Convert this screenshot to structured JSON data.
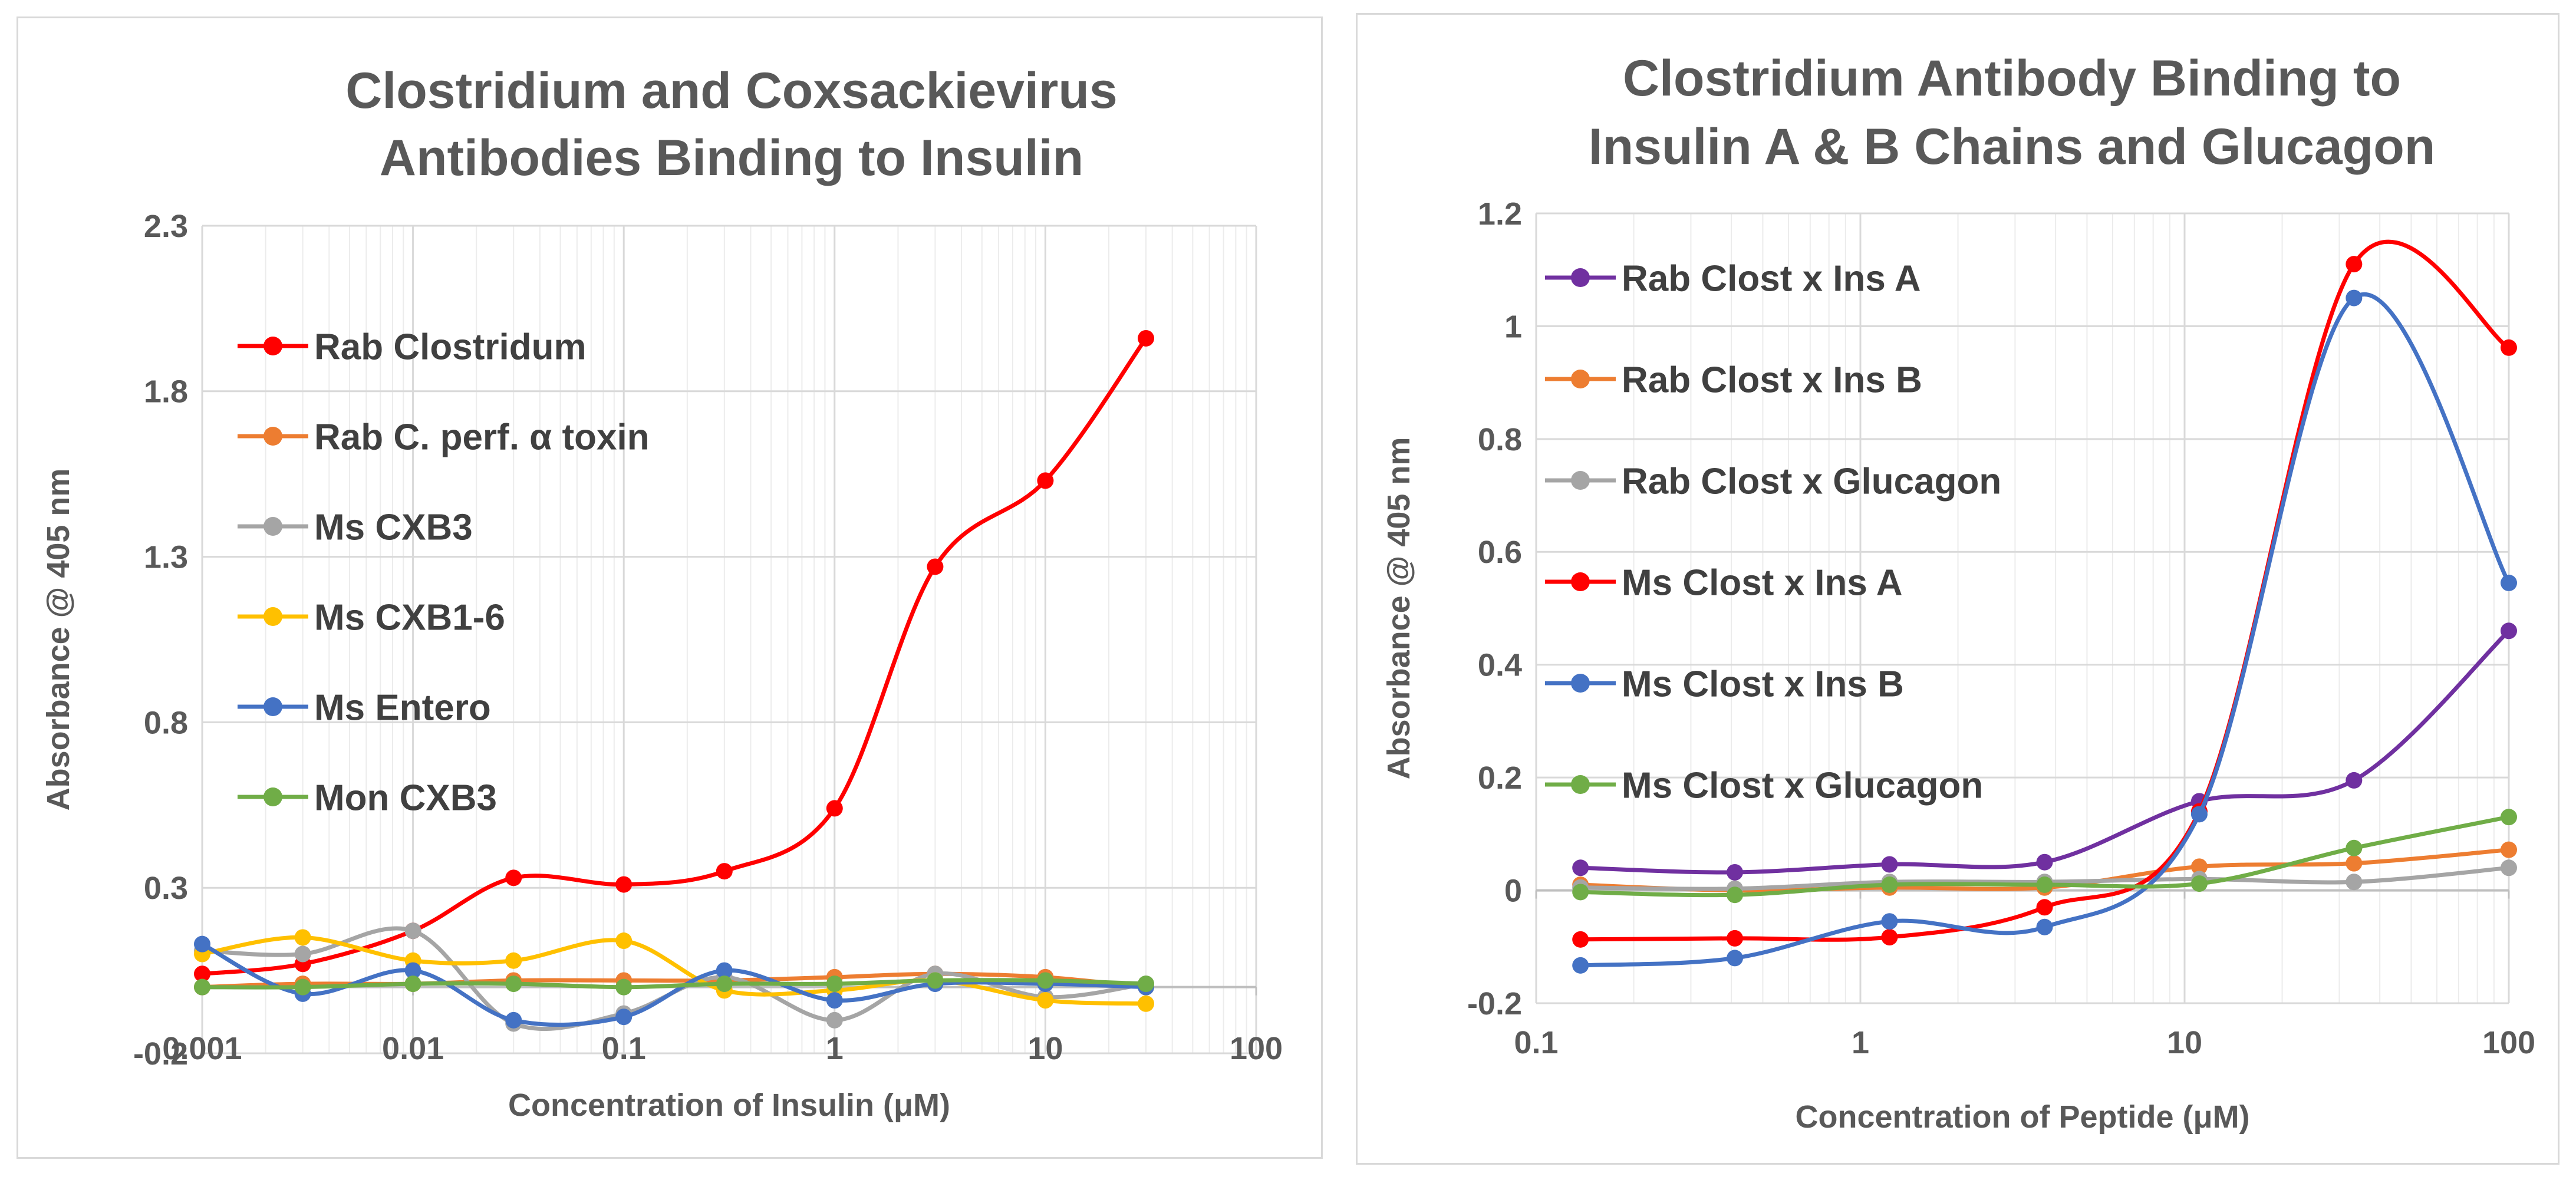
{
  "chart_data": [
    {
      "type": "line",
      "x_scale": "log",
      "title_lines": [
        "Clostridium and Coxsackievirus",
        "Antibodies Binding to Insulin"
      ],
      "xlabel": "Concentration of Insulin (μM)",
      "ylabel": "Absorbance @ 405 nm",
      "xlim": [
        0.001,
        100
      ],
      "ylim": [
        -0.2,
        2.3
      ],
      "x_ticks": [
        0.001,
        0.01,
        0.1,
        1,
        10,
        100
      ],
      "x_tick_labels": [
        "0.001",
        "0.01",
        "0.1",
        "1",
        "10",
        "100"
      ],
      "y_ticks": [
        -0.2,
        0.3,
        0.8,
        1.3,
        1.8,
        2.3
      ],
      "y_tick_labels": [
        "-0.2",
        "0.3",
        "0.8",
        "1.3",
        "1.8",
        "2.3"
      ],
      "grid": true,
      "legend_position": "upper-left",
      "x": [
        0.001,
        0.003,
        0.01,
        0.03,
        0.1,
        0.3,
        1,
        3,
        10,
        30
      ],
      "series": [
        {
          "name": "Rab Clostridum",
          "color": "#ff0000",
          "values": [
            0.04,
            0.07,
            0.17,
            0.33,
            0.31,
            0.35,
            0.54,
            1.27,
            1.53,
            1.96
          ]
        },
        {
          "name": "Rab C. perf. α toxin",
          "color": "#ed7d31",
          "values": [
            0.0,
            0.01,
            0.01,
            0.02,
            0.02,
            0.02,
            0.03,
            0.04,
            0.03,
            0.0
          ]
        },
        {
          "name": "Ms CXB3",
          "color": "#a5a5a5",
          "values": [
            0.11,
            0.1,
            0.17,
            -0.11,
            -0.08,
            0.03,
            -0.1,
            0.04,
            -0.03,
            0.01
          ]
        },
        {
          "name": "Ms CXB1-6",
          "color": "#ffc000",
          "values": [
            0.1,
            0.15,
            0.08,
            0.08,
            0.14,
            -0.01,
            -0.01,
            0.02,
            -0.04,
            -0.05
          ]
        },
        {
          "name": "Ms Entero",
          "color": "#4472c4",
          "values": [
            0.13,
            -0.02,
            0.05,
            -0.1,
            -0.09,
            0.05,
            -0.04,
            0.01,
            0.01,
            0.0
          ]
        },
        {
          "name": "Mon CXB3",
          "color": "#70ad47",
          "values": [
            0.0,
            0.0,
            0.01,
            0.01,
            0.0,
            0.01,
            0.01,
            0.02,
            0.02,
            0.01
          ]
        }
      ]
    },
    {
      "type": "line",
      "x_scale": "log",
      "title_lines": [
        "Clostridium Antibody Binding to",
        "Insulin A & B Chains and Glucagon"
      ],
      "xlabel": "Concentration of Peptide (μM)",
      "ylabel": "Absorbance @ 405 nm",
      "xlim": [
        0.1,
        100
      ],
      "ylim": [
        -0.2,
        1.2
      ],
      "x_ticks": [
        0.1,
        1,
        10,
        100
      ],
      "x_tick_labels": [
        "0.1",
        "1",
        "10",
        "100"
      ],
      "y_ticks": [
        -0.2,
        0,
        0.2,
        0.4,
        0.6,
        0.8,
        1,
        1.2
      ],
      "y_tick_labels": [
        "-0.2",
        "0",
        "0.2",
        "0.4",
        "0.6",
        "0.8",
        "1",
        "1.2"
      ],
      "grid": true,
      "legend_position": "upper-left",
      "x": [
        0.137,
        0.41,
        1.23,
        3.7,
        11.1,
        33.3,
        100
      ],
      "series": [
        {
          "name": "Rab Clost x Ins A",
          "color": "#7030a0",
          "values": [
            0.04,
            0.032,
            0.046,
            0.05,
            0.158,
            0.195,
            0.46
          ]
        },
        {
          "name": "Rab Clost x Ins B",
          "color": "#ed7d31",
          "values": [
            0.01,
            0.0,
            0.005,
            0.005,
            0.042,
            0.048,
            0.072
          ]
        },
        {
          "name": "Rab Clost x Glucagon",
          "color": "#a5a5a5",
          "values": [
            0.005,
            0.003,
            0.015,
            0.015,
            0.02,
            0.015,
            0.04
          ]
        },
        {
          "name": "Ms Clost x Ins A",
          "color": "#ff0000",
          "values": [
            -0.087,
            -0.085,
            -0.083,
            -0.03,
            0.14,
            1.11,
            0.962
          ]
        },
        {
          "name": "Ms Clost x Ins B",
          "color": "#4472c4",
          "values": [
            -0.133,
            -0.12,
            -0.055,
            -0.065,
            0.135,
            1.05,
            0.545
          ]
        },
        {
          "name": "Ms Clost x Glucagon",
          "color": "#70ad47",
          "values": [
            -0.003,
            -0.008,
            0.01,
            0.01,
            0.012,
            0.075,
            0.13
          ]
        }
      ]
    }
  ]
}
